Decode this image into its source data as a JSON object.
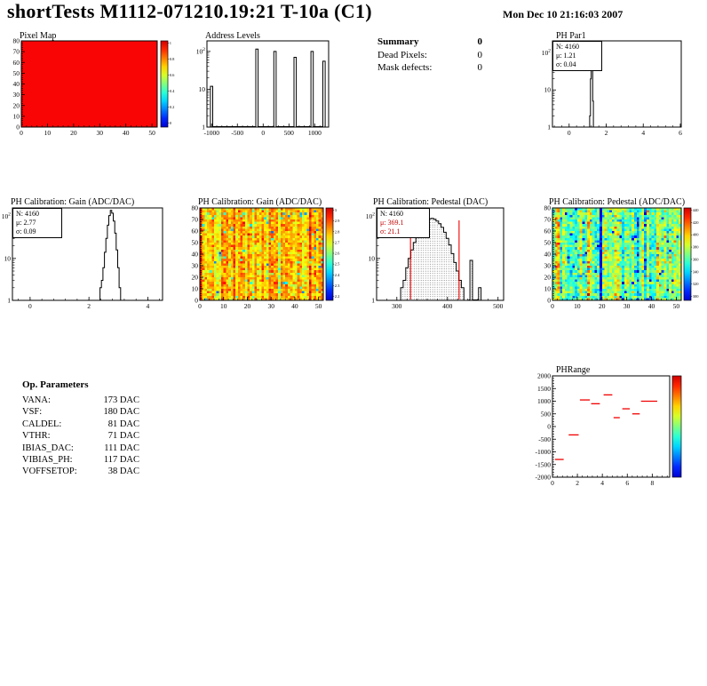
{
  "header": {
    "title": "shortTests M1112-071210.19:21 T-10a (C1)",
    "date": "Mon Dec 10 21:16:03 2007"
  },
  "summary": {
    "title": "Summary",
    "value": "0",
    "rows": [
      {
        "label": "Dead Pixels:",
        "value": "0"
      },
      {
        "label": "Mask defects:",
        "value": "0"
      }
    ]
  },
  "op_parameters": {
    "title": "Op. Parameters",
    "rows": [
      {
        "label": "VANA:",
        "value": "173 DAC"
      },
      {
        "label": "VSF:",
        "value": "180 DAC"
      },
      {
        "label": "CALDEL:",
        "value": "81 DAC"
      },
      {
        "label": "VTHR:",
        "value": "71 DAC"
      },
      {
        "label": "IBIAS_DAC:",
        "value": "111 DAC"
      },
      {
        "label": "VIBIAS_PH:",
        "value": "117 DAC"
      },
      {
        "label": "VOFFSETOP:",
        "value": "38 DAC"
      }
    ]
  },
  "chart_data": [
    {
      "id": "pixel_map",
      "type": "heatmap",
      "title": "Pixel Map",
      "x_range": [
        0,
        52
      ],
      "x_ticks": [
        0,
        10,
        20,
        30,
        40,
        50
      ],
      "y_range": [
        0,
        80
      ],
      "y_ticks": [
        0,
        10,
        20,
        30,
        40,
        50,
        60,
        70,
        80
      ],
      "uniform_value": 1,
      "fill_color": "#fa0505",
      "z_ticks": [
        "1",
        "0.8",
        "0.6",
        "0.4",
        "0.2",
        "0"
      ]
    },
    {
      "id": "address_levels",
      "type": "histogram",
      "title": "Address Levels",
      "x_range": [
        -1090,
        1270
      ],
      "x_ticks": [
        -1000,
        -500,
        0,
        500,
        1000
      ],
      "y_scale": "log",
      "y_max": 190,
      "bin_width": 45,
      "bins": [
        [
          -1000,
          12
        ],
        [
          -120,
          115
        ],
        [
          230,
          100
        ],
        [
          620,
          70
        ],
        [
          950,
          100
        ],
        [
          1180,
          55
        ]
      ]
    },
    {
      "id": "ph_par1",
      "type": "histogram",
      "title": "PH Par1",
      "stats": {
        "entries": "N: 4160",
        "mean": "μ: 1.21",
        "sigma": "σ: 0.04"
      },
      "x_range": [
        -0.9,
        6.05
      ],
      "x_ticks": [
        0,
        2,
        4,
        6
      ],
      "y_scale": "log",
      "y_max": 210,
      "bin_width": 0.04,
      "bins": [
        [
          1.13,
          2
        ],
        [
          1.17,
          20
        ],
        [
          1.21,
          190
        ],
        [
          1.25,
          55
        ],
        [
          1.29,
          5
        ]
      ]
    },
    {
      "id": "gain_1d",
      "type": "histogram",
      "title": "PH Calibration: Gain (ADC/DAC)",
      "stats": {
        "entries": "N: 4160",
        "mean": "μ: 2.77",
        "sigma": "σ: 0.09"
      },
      "x_range": [
        -0.6,
        4.5
      ],
      "x_ticks": [
        0,
        2,
        4
      ],
      "y_scale": "log",
      "y_max": 160,
      "bin_width": 0.05,
      "bins": [
        [
          2.3,
          1
        ],
        [
          2.35,
          1
        ],
        [
          2.4,
          2
        ],
        [
          2.45,
          3
        ],
        [
          2.5,
          6
        ],
        [
          2.55,
          14
        ],
        [
          2.6,
          30
        ],
        [
          2.65,
          62
        ],
        [
          2.7,
          105
        ],
        [
          2.75,
          140
        ],
        [
          2.8,
          120
        ],
        [
          2.85,
          78
        ],
        [
          2.9,
          40
        ],
        [
          2.95,
          16
        ],
        [
          3.0,
          6
        ],
        [
          3.05,
          2
        ],
        [
          3.1,
          1
        ]
      ]
    },
    {
      "id": "gain_2d",
      "type": "heatmap",
      "title": "PH Calibration: Gain (ADC/DAC)",
      "x_range": [
        0,
        52
      ],
      "x_ticks": [
        0,
        10,
        20,
        30,
        40,
        50
      ],
      "y_range": [
        0,
        80
      ],
      "y_ticks": [
        0,
        10,
        20,
        30,
        40,
        50,
        60,
        70,
        80
      ],
      "z_range": [
        2.2,
        3.0
      ],
      "z_mean": 2.77,
      "z_sigma": 0.09,
      "z_ticks": [
        "3",
        "2.9",
        "2.8",
        "2.7",
        "2.6",
        "2.5",
        "2.4",
        "2.3",
        "2.2"
      ],
      "noise": {
        "column_sigma": 0.055,
        "cell_sigma": 0.055,
        "stripe_columns": []
      },
      "seed": 7
    },
    {
      "id": "pedestal_1d",
      "type": "histogram",
      "title": "PH Calibration: Pedestal (DAC)",
      "stats": {
        "entries": "N: 4160",
        "mean": "μ: 369.1",
        "sigma": "σ: 21.1"
      },
      "stats_highlight": true,
      "x_range": [
        260,
        511
      ],
      "x_ticks": [
        300,
        400,
        500
      ],
      "y_scale": "log",
      "y_max": 160,
      "bin_width": 5,
      "fill_style": "dots",
      "marker_lines": [
        327,
        423
      ],
      "marker_color": "#f00000",
      "bins": [
        [
          305,
          1
        ],
        [
          310,
          2
        ],
        [
          315,
          3
        ],
        [
          320,
          6
        ],
        [
          325,
          10
        ],
        [
          330,
          16
        ],
        [
          335,
          24
        ],
        [
          340,
          35
        ],
        [
          345,
          47
        ],
        [
          350,
          60
        ],
        [
          355,
          72
        ],
        [
          360,
          82
        ],
        [
          365,
          88
        ],
        [
          370,
          90
        ],
        [
          375,
          86
        ],
        [
          380,
          78
        ],
        [
          385,
          67
        ],
        [
          390,
          55
        ],
        [
          395,
          42
        ],
        [
          400,
          30
        ],
        [
          405,
          21
        ],
        [
          410,
          13
        ],
        [
          415,
          8
        ],
        [
          420,
          5
        ],
        [
          425,
          3
        ],
        [
          430,
          2
        ],
        [
          435,
          1
        ],
        [
          440,
          1
        ],
        [
          447,
          9
        ],
        [
          464,
          2
        ]
      ]
    },
    {
      "id": "pedestal_2d",
      "type": "heatmap",
      "title": "PH Calibration: Pedestal (ADC/DAC)",
      "x_range": [
        0,
        52
      ],
      "x_ticks": [
        0,
        10,
        20,
        30,
        40,
        50
      ],
      "y_range": [
        0,
        80
      ],
      "y_ticks": [
        0,
        10,
        20,
        30,
        40,
        50,
        60,
        70,
        80
      ],
      "z_range": [
        300,
        440
      ],
      "z_mean": 369,
      "z_sigma": 21,
      "z_ticks": [
        "440",
        "420",
        "400",
        "380",
        "360",
        "340",
        "320",
        "300"
      ],
      "noise": {
        "column_sigma": 13,
        "cell_sigma": 13,
        "stripe_columns": [
          {
            "col": 6,
            "dz": -25
          },
          {
            "col": 19,
            "dz": -30
          },
          {
            "col": 34,
            "dz": -42
          },
          {
            "col": 37,
            "dz": -35
          },
          {
            "col": 46,
            "dz": -22
          }
        ]
      },
      "seed": 13
    },
    {
      "id": "ph_range",
      "type": "scatter",
      "title": "PHRange",
      "x_range": [
        0,
        9.4
      ],
      "x_ticks": [
        0,
        2,
        4,
        6,
        8
      ],
      "y_range": [
        -2000,
        2000
      ],
      "y_ticks": [
        2000,
        1500,
        1000,
        500,
        0,
        -500,
        -1000,
        -1500,
        -2000
      ],
      "marker_color": "#f00000",
      "segments": [
        {
          "x1": 0.2,
          "x2": 0.9,
          "y": -1300
        },
        {
          "x1": 1.3,
          "x2": 2.1,
          "y": -330
        },
        {
          "x1": 2.2,
          "x2": 3.0,
          "y": 1050
        },
        {
          "x1": 3.1,
          "x2": 3.8,
          "y": 900
        },
        {
          "x1": 4.1,
          "x2": 4.8,
          "y": 1250
        },
        {
          "x1": 4.9,
          "x2": 5.4,
          "y": 350
        },
        {
          "x1": 5.6,
          "x2": 6.2,
          "y": 700
        },
        {
          "x1": 6.4,
          "x2": 7.0,
          "y": 500
        },
        {
          "x1": 7.1,
          "x2": 8.4,
          "y": 1000
        }
      ]
    }
  ]
}
